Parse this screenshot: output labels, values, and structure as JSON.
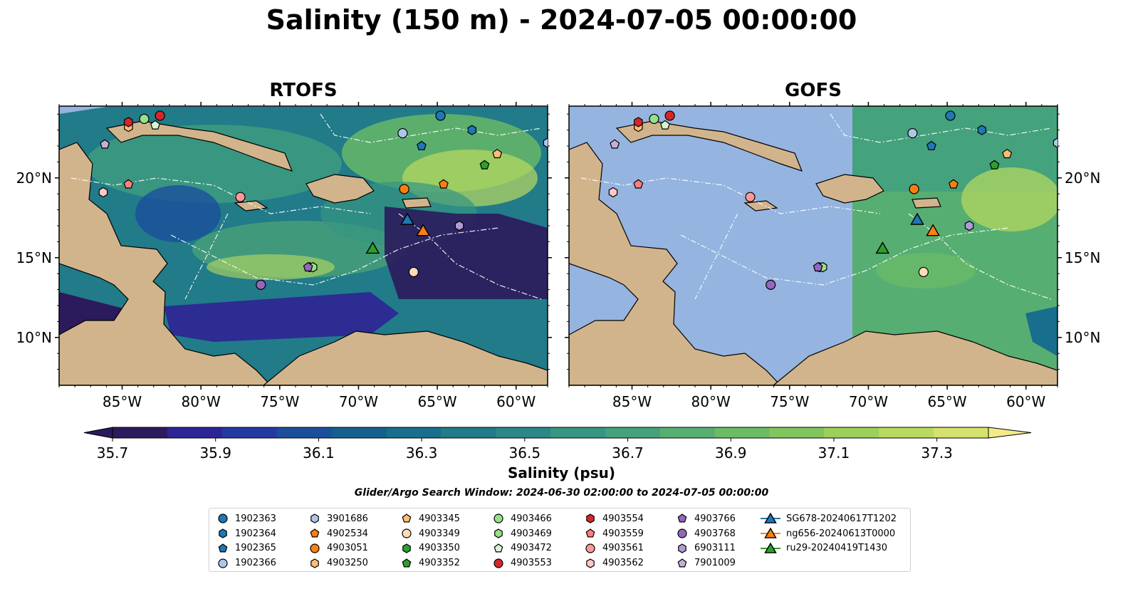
{
  "title": "Salinity (150 m) - 2024-07-05 00:00:00",
  "panels": [
    {
      "title": "RTOFS"
    },
    {
      "title": "GOFS"
    }
  ],
  "x_ticks": [
    "85°W",
    "80°W",
    "75°W",
    "70°W",
    "65°W",
    "60°W"
  ],
  "y_ticks": [
    "20°N",
    "15°N",
    "10°N"
  ],
  "map_extent": {
    "lon": [
      -89,
      -58
    ],
    "lat": [
      7,
      24.5
    ]
  },
  "colorbar": {
    "label": "Salinity (psu)",
    "ticks": [
      "35.7",
      "35.9",
      "36.1",
      "36.3",
      "36.5",
      "36.7",
      "36.9",
      "37.1",
      "37.3"
    ],
    "range": [
      35.7,
      37.4
    ],
    "colors": [
      "#2b1a5c",
      "#2d2495",
      "#243aa0",
      "#1b4f9c",
      "#155f90",
      "#186e8c",
      "#217b89",
      "#2a8887",
      "#369682",
      "#44a27c",
      "#57ae72",
      "#6bbb67",
      "#82c55e",
      "#9dd05a",
      "#b9da5f",
      "#d5e26d",
      "#f5ea8a"
    ]
  },
  "colors": {
    "land": "#d2b48c",
    "no_data_ocean": "#95b4e0",
    "low_salinity": "#2b2470",
    "mid_salinity": "#217b89",
    "high_salinity": "#a8d65d"
  },
  "search_window": "Glider/Argo Search Window: 2024-06-30 02:00:00 to 2024-07-05 00:00:00",
  "legend": [
    [
      {
        "label": "1902363",
        "shape": "circle",
        "color": "#1f77b4"
      },
      {
        "label": "1902364",
        "shape": "hexagon",
        "color": "#1f77b4"
      },
      {
        "label": "1902365",
        "shape": "pentagon",
        "color": "#1f77b4"
      },
      {
        "label": "1902366",
        "shape": "circle",
        "color": "#aec7e8"
      }
    ],
    [
      {
        "label": "3901686",
        "shape": "hexagon",
        "color": "#aec7e8"
      },
      {
        "label": "4902534",
        "shape": "pentagon",
        "color": "#ff7f0e"
      },
      {
        "label": "4903051",
        "shape": "circle",
        "color": "#ff7f0e"
      },
      {
        "label": "4903250",
        "shape": "hexagon",
        "color": "#ffbb78"
      }
    ],
    [
      {
        "label": "4903345",
        "shape": "pentagon",
        "color": "#ffbb78"
      },
      {
        "label": "4903349",
        "shape": "circle",
        "color": "#ffdcb8"
      },
      {
        "label": "4903350",
        "shape": "hexagon",
        "color": "#2ca02c"
      },
      {
        "label": "4903352",
        "shape": "pentagon",
        "color": "#2ca02c"
      }
    ],
    [
      {
        "label": "4903466",
        "shape": "circle",
        "color": "#98df8a"
      },
      {
        "label": "4903469",
        "shape": "hexagon",
        "color": "#98df8a"
      },
      {
        "label": "4903472",
        "shape": "pentagon",
        "color": "#d6f5cf"
      },
      {
        "label": "4903553",
        "shape": "circle",
        "color": "#d62728"
      }
    ],
    [
      {
        "label": "4903554",
        "shape": "hexagon",
        "color": "#d62728"
      },
      {
        "label": "4903559",
        "shape": "pentagon",
        "color": "#ff7f7f"
      },
      {
        "label": "4903561",
        "shape": "circle",
        "color": "#ff9896"
      },
      {
        "label": "4903562",
        "shape": "hexagon",
        "color": "#ffc8c6"
      }
    ],
    [
      {
        "label": "4903766",
        "shape": "pentagon",
        "color": "#9467bd"
      },
      {
        "label": "4903768",
        "shape": "circle",
        "color": "#9467bd"
      },
      {
        "label": "6903111",
        "shape": "hexagon",
        "color": "#b09ad6"
      },
      {
        "label": "7901009",
        "shape": "pentagon",
        "color": "#c5b0d5"
      }
    ],
    [
      {
        "label": "SG678-20240617T1202",
        "shape": "triangle-line",
        "color": "#1f77b4"
      },
      {
        "label": "ng656-20240613T0000",
        "shape": "triangle-line",
        "color": "#ff7f0e"
      },
      {
        "label": "ru29-20240419T1430",
        "shape": "triangle-line",
        "color": "#2ca02c"
      }
    ]
  ],
  "floats": [
    {
      "id": "1902363",
      "lon": -64.8,
      "lat": 23.9
    },
    {
      "id": "1902364",
      "lon": -62.8,
      "lat": 23.0
    },
    {
      "id": "1902365",
      "lon": -66.0,
      "lat": 22.0
    },
    {
      "id": "1902366",
      "lon": -67.2,
      "lat": 22.8
    },
    {
      "id": "3901686",
      "lon": -58.0,
      "lat": 22.2
    },
    {
      "id": "4902534",
      "lon": -64.6,
      "lat": 19.6
    },
    {
      "id": "4903051",
      "lon": -67.1,
      "lat": 19.3
    },
    {
      "id": "4903250",
      "lon": -84.6,
      "lat": 23.2
    },
    {
      "id": "4903345",
      "lon": -61.2,
      "lat": 21.5
    },
    {
      "id": "4903349",
      "lon": -66.5,
      "lat": 14.1
    },
    {
      "id": "4903350",
      "lon": -73.1,
      "lat": 14.4
    },
    {
      "id": "4903352",
      "lon": -62.0,
      "lat": 20.8
    },
    {
      "id": "4903466",
      "lon": -83.6,
      "lat": 23.7
    },
    {
      "id": "4903469",
      "lon": -72.9,
      "lat": 14.4
    },
    {
      "id": "4903472",
      "lon": -82.9,
      "lat": 23.3
    },
    {
      "id": "4903553",
      "lon": -82.6,
      "lat": 23.9
    },
    {
      "id": "4903554",
      "lon": -84.6,
      "lat": 23.5
    },
    {
      "id": "4903559",
      "lon": -84.6,
      "lat": 19.6
    },
    {
      "id": "4903561",
      "lon": -77.5,
      "lat": 18.8
    },
    {
      "id": "4903562",
      "lon": -86.2,
      "lat": 19.1
    },
    {
      "id": "4903766",
      "lon": -73.2,
      "lat": 14.4
    },
    {
      "id": "4903768",
      "lon": -76.2,
      "lat": 13.3
    },
    {
      "id": "6903111",
      "lon": -63.6,
      "lat": 17.0
    },
    {
      "id": "7901009",
      "lon": -86.1,
      "lat": 22.1
    }
  ],
  "gliders": [
    {
      "id": "SG678-20240617T1202",
      "lon": -66.9,
      "lat": 17.4
    },
    {
      "id": "ng656-20240613T0000",
      "lon": -65.9,
      "lat": 16.7
    },
    {
      "id": "ru29-20240419T1430",
      "lon": -69.1,
      "lat": 15.6
    }
  ]
}
